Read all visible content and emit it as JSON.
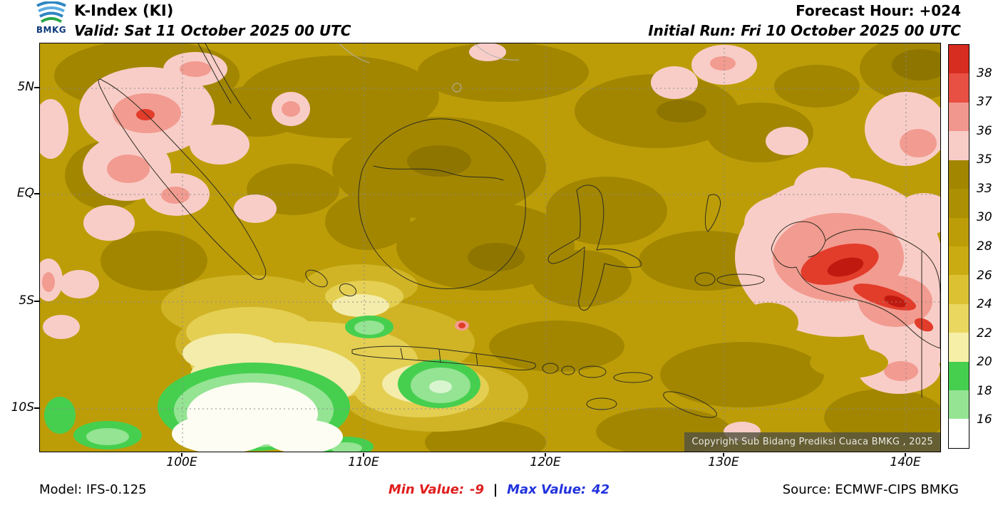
{
  "header": {
    "logo_text": "BMKG",
    "title": "K-Index (KI)",
    "valid": "Valid: Sat 11 October 2025 00 UTC",
    "forecast_hour": "Forecast Hour: +024",
    "initial_run": "Initial Run: Fri 10 October 2025 00 UTC"
  },
  "map": {
    "y_axis_labels": [
      "5N",
      "EQ",
      "5S",
      "10S"
    ],
    "x_axis_labels": [
      "100E",
      "110E",
      "120E",
      "130E",
      "140E"
    ],
    "copyright": "Copyright Sub Bidang Prediksi Cuaca BMKG , 2025"
  },
  "colorbar": {
    "tick_labels": [
      "38",
      "37",
      "36",
      "35",
      "33",
      "30",
      "28",
      "26",
      "24",
      "22",
      "20",
      "18",
      "16"
    ],
    "segment_colors_top_to_bottom": [
      "#d62d20",
      "#e85043",
      "#f2978d",
      "#f8cdc8",
      "#a28600",
      "#ac8f02",
      "#bc9d08",
      "#caab12",
      "#dcc133",
      "#ead75f",
      "#f6efa8",
      "#46cf4f",
      "#94e493",
      "#ffffff"
    ]
  },
  "footer": {
    "model": "Model: IFS-0.125",
    "min_label": "Min Value:",
    "min_value": "-9",
    "separator": "|",
    "max_label": "Max Value:",
    "max_value": "42",
    "source": "Source: ECMWF-CIPS BMKG"
  },
  "colors": {
    "min_value_color": "#e01d1d",
    "max_value_color": "#2233dd",
    "base_fill": "#bc9d08"
  }
}
